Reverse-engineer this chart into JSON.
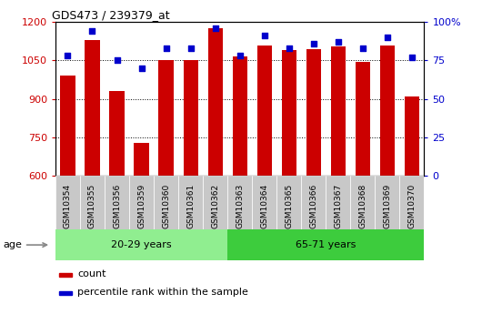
{
  "title": "GDS473 / 239379_at",
  "samples": [
    "GSM10354",
    "GSM10355",
    "GSM10356",
    "GSM10359",
    "GSM10360",
    "GSM10361",
    "GSM10362",
    "GSM10363",
    "GSM10364",
    "GSM10365",
    "GSM10366",
    "GSM10367",
    "GSM10368",
    "GSM10369",
    "GSM10370"
  ],
  "counts": [
    990,
    1130,
    930,
    730,
    1050,
    1053,
    1175,
    1065,
    1110,
    1090,
    1095,
    1105,
    1045,
    1110,
    910
  ],
  "percentiles": [
    78,
    94,
    75,
    70,
    83,
    83,
    96,
    78,
    91,
    83,
    86,
    87,
    83,
    90,
    77
  ],
  "ylim_left": [
    600,
    1200
  ],
  "ylim_right": [
    0,
    100
  ],
  "yticks_left": [
    600,
    750,
    900,
    1050,
    1200
  ],
  "yticks_right": [
    0,
    25,
    50,
    75,
    100
  ],
  "groups": [
    {
      "label": "20-29 years",
      "start": 0,
      "end": 7,
      "color": "#90EE90"
    },
    {
      "label": "65-71 years",
      "start": 7,
      "end": 15,
      "color": "#3DCC3D"
    }
  ],
  "bar_color": "#CC0000",
  "dot_color": "#0000CC",
  "grid_color": "#000000",
  "age_label": "age",
  "legend_count": "count",
  "legend_pct": "percentile rank within the sample",
  "bg_color": "#FFFFFF",
  "tick_bg_color": "#C8C8C8",
  "axis_label_color_left": "#CC0000",
  "axis_label_color_right": "#0000CC",
  "bar_width": 0.6
}
